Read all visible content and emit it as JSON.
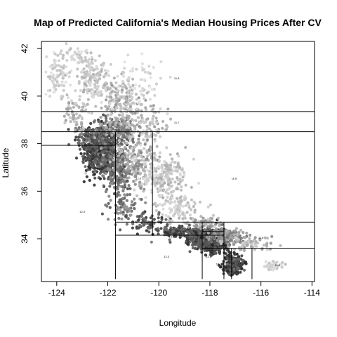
{
  "chart_data": {
    "type": "scatter",
    "title": "Map of Predicted California's Median Housing Prices After CV",
    "xlabel": "Longitude",
    "ylabel": "Latitude",
    "xlim": [
      -124.6,
      -113.9
    ],
    "ylim": [
      32.2,
      42.3
    ],
    "xticks": [
      -124,
      -122,
      -120,
      -118,
      -116,
      -114
    ],
    "yticks": [
      34,
      36,
      38,
      40,
      42
    ],
    "x_tick_labels": [
      "-124",
      "-122",
      "-120",
      "-118",
      "-116",
      "-114"
    ],
    "y_tick_labels": [
      "34",
      "36",
      "38",
      "40",
      "42"
    ],
    "grid": false,
    "point_color_scale": "grayscale (darker = higher predicted price)",
    "partition_lines": [
      {
        "orient": "h",
        "value": 39.35,
        "from": -124.6,
        "to": -113.9
      },
      {
        "orient": "h",
        "value": 38.5,
        "from": -124.6,
        "to": -113.9
      },
      {
        "orient": "h",
        "value": 37.93,
        "from": -124.6,
        "to": -121.7
      },
      {
        "orient": "v",
        "value": -121.7,
        "from": 32.3,
        "to": 38.5
      },
      {
        "orient": "v",
        "value": -120.25,
        "from": 34.15,
        "to": 38.5
      },
      {
        "orient": "h",
        "value": 34.7,
        "from": -121.7,
        "to": -113.9
      },
      {
        "orient": "h",
        "value": 34.15,
        "from": -121.7,
        "to": -117.45
      },
      {
        "orient": "v",
        "value": -118.3,
        "from": 32.3,
        "to": 34.7
      },
      {
        "orient": "v",
        "value": -117.45,
        "from": 32.3,
        "to": 34.7
      },
      {
        "orient": "h",
        "value": 34.3,
        "from": -118.3,
        "to": -117.45
      },
      {
        "orient": "h",
        "value": 33.6,
        "from": -118.3,
        "to": -113.9
      },
      {
        "orient": "v",
        "value": -117.15,
        "from": 32.3,
        "to": 33.6
      },
      {
        "orient": "v",
        "value": -116.35,
        "from": 32.3,
        "to": 33.6
      }
    ],
    "leaf_labels": [
      {
        "x": -119.3,
        "y": 40.7,
        "text": "11.8"
      },
      {
        "x": -119.3,
        "y": 38.85,
        "text": "11.7"
      },
      {
        "x": -121.8,
        "y": 38.2,
        "text": "12.1"
      },
      {
        "x": -120.8,
        "y": 36.5,
        "text": "12.0"
      },
      {
        "x": -117.05,
        "y": 36.5,
        "text": "11.8"
      },
      {
        "x": -123.0,
        "y": 35.1,
        "text": "12.0"
      },
      {
        "x": -119.5,
        "y": 34.05,
        "text": "12.4"
      },
      {
        "x": -117.9,
        "y": 34.0,
        "text": "12.2"
      },
      {
        "x": -116.0,
        "y": 34.0,
        "text": "11.6"
      },
      {
        "x": -119.7,
        "y": 33.2,
        "text": "12.3"
      },
      {
        "x": -118.05,
        "y": 33.2,
        "text": "12.8"
      },
      {
        "x": -117.65,
        "y": 32.9,
        "text": "12.2"
      },
      {
        "x": -116.8,
        "y": 32.9,
        "text": "12.3"
      },
      {
        "x": -115.35,
        "y": 32.85,
        "text": "11.2"
      }
    ],
    "clusters": [
      {
        "cx": -122.3,
        "cy": 37.75,
        "sx": 0.35,
        "sy": 0.5,
        "n": 520,
        "shade": [
          40,
          110
        ]
      },
      {
        "cx": -121.9,
        "cy": 37.3,
        "sx": 0.3,
        "sy": 0.3,
        "n": 220,
        "shade": [
          50,
          120
        ]
      },
      {
        "cx": -122.6,
        "cy": 38.3,
        "sx": 0.35,
        "sy": 0.25,
        "n": 120,
        "shade": [
          60,
          140
        ]
      },
      {
        "cx": -121.5,
        "cy": 38.6,
        "sx": 0.35,
        "sy": 0.3,
        "n": 200,
        "shade": [
          90,
          170
        ]
      },
      {
        "cx": -121.0,
        "cy": 37.2,
        "sx": 0.45,
        "sy": 0.5,
        "n": 220,
        "shade": [
          130,
          210
        ]
      },
      {
        "cx": -119.8,
        "cy": 36.6,
        "sx": 0.45,
        "sy": 0.5,
        "n": 220,
        "shade": [
          170,
          225
        ]
      },
      {
        "cx": -121.6,
        "cy": 36.6,
        "sx": 0.25,
        "sy": 0.35,
        "n": 120,
        "shade": [
          80,
          150
        ]
      },
      {
        "cx": -121.3,
        "cy": 35.4,
        "sx": 0.3,
        "sy": 0.35,
        "n": 80,
        "shade": [
          90,
          160
        ]
      },
      {
        "cx": -120.5,
        "cy": 34.7,
        "sx": 0.35,
        "sy": 0.25,
        "n": 70,
        "shade": [
          60,
          130
        ]
      },
      {
        "cx": -119.2,
        "cy": 35.4,
        "sx": 0.4,
        "sy": 0.35,
        "n": 100,
        "shade": [
          180,
          225
        ]
      },
      {
        "cx": -118.2,
        "cy": 34.05,
        "sx": 0.35,
        "sy": 0.2,
        "n": 520,
        "shade": [
          40,
          120
        ]
      },
      {
        "cx": -119.3,
        "cy": 34.3,
        "sx": 0.35,
        "sy": 0.1,
        "n": 110,
        "shade": [
          50,
          120
        ]
      },
      {
        "cx": -117.85,
        "cy": 33.75,
        "sx": 0.25,
        "sy": 0.15,
        "n": 250,
        "shade": [
          30,
          100
        ]
      },
      {
        "cx": -117.1,
        "cy": 32.9,
        "sx": 0.2,
        "sy": 0.2,
        "n": 220,
        "shade": [
          40,
          110
        ]
      },
      {
        "cx": -117.3,
        "cy": 34.1,
        "sx": 0.35,
        "sy": 0.15,
        "n": 180,
        "shade": [
          110,
          190
        ]
      },
      {
        "cx": -118.2,
        "cy": 34.65,
        "sx": 0.3,
        "sy": 0.12,
        "n": 70,
        "shade": [
          140,
          210
        ]
      },
      {
        "cx": -116.3,
        "cy": 33.8,
        "sx": 0.4,
        "sy": 0.2,
        "n": 60,
        "shade": [
          150,
          215
        ]
      },
      {
        "cx": -115.5,
        "cy": 32.85,
        "sx": 0.2,
        "sy": 0.08,
        "n": 40,
        "shade": [
          190,
          225
        ]
      },
      {
        "cx": -121.4,
        "cy": 39.7,
        "sx": 0.5,
        "sy": 0.5,
        "n": 180,
        "shade": [
          150,
          215
        ]
      },
      {
        "cx": -122.6,
        "cy": 40.6,
        "sx": 0.4,
        "sy": 0.5,
        "n": 150,
        "shade": [
          170,
          225
        ]
      },
      {
        "cx": -124.0,
        "cy": 40.7,
        "sx": 0.2,
        "sy": 0.4,
        "n": 60,
        "shade": [
          190,
          230
        ]
      },
      {
        "cx": -123.3,
        "cy": 39.3,
        "sx": 0.25,
        "sy": 0.4,
        "n": 60,
        "shade": [
          160,
          215
        ]
      },
      {
        "cx": -123.2,
        "cy": 41.5,
        "sx": 0.5,
        "sy": 0.3,
        "n": 70,
        "shade": [
          190,
          230
        ]
      },
      {
        "cx": -120.8,
        "cy": 40.6,
        "sx": 0.5,
        "sy": 0.5,
        "n": 60,
        "shade": [
          200,
          232
        ]
      },
      {
        "cx": -120.4,
        "cy": 38.6,
        "sx": 0.4,
        "sy": 0.45,
        "n": 90,
        "shade": [
          160,
          220
        ]
      }
    ]
  }
}
